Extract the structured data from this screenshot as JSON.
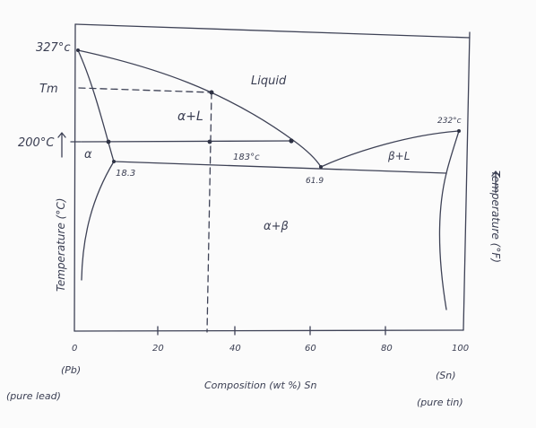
{
  "labels": {
    "t327": "327°c",
    "tm": "Tm",
    "t200": "200°C",
    "liquid": "Liquid",
    "alpha_l": "α+L",
    "t232": "232°c",
    "alpha": "α",
    "beta_l": "β+L",
    "c183": "183°c",
    "c183_pt": "18.3",
    "c619": "61.9",
    "alpha_beta": "α+β",
    "y_left": "Temperature (°C)",
    "y_right": "Temperature (°F)",
    "x0": "0",
    "x20": "20",
    "x40": "40",
    "x60": "60",
    "x80": "80",
    "x100": "100",
    "pb": "(Pb)",
    "pure_lead": "(pure lead)",
    "xlabel": "Composition (wt %) Sn",
    "sn": "(Sn)",
    "pure_tin": "(pure tin)"
  },
  "ink_color": "#3e4256"
}
